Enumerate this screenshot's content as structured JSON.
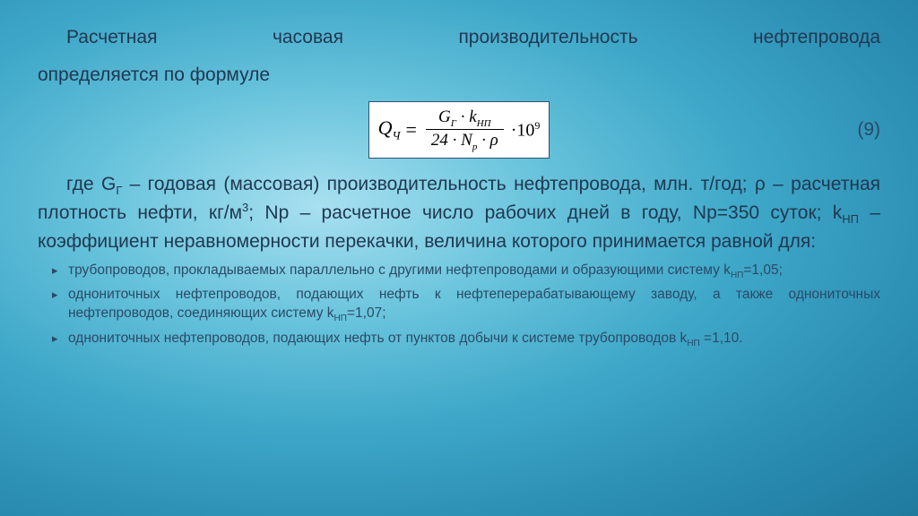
{
  "intro_line1": "Расчетная часовая производительность нефтепровода",
  "intro_line2": "определяется по формуле",
  "formula": {
    "lhs_sym": "Q",
    "lhs_sub": "Ч",
    "num": "G<sub>Г</sub> · k<sub>НП</sub>",
    "den": "24 · N<sub>p</sub> · ρ",
    "tail": "·10<sup>9</sup>",
    "eqnum": "(9)"
  },
  "where_html": "где G<sub>Г</sub> – годовая (массовая) производительность нефтепровода, млн. т/год; ρ – расчетная плотность нефти, кг/м<sup style='font-size:13px'>3</sup>; Np – расчетное число рабочих дней в году, Np=350 суток; k<sub>НП</sub> – коэффициент неравномерности перекачки, величина которого принимается равной для:",
  "bullets": [
    "трубопроводов, прокладываемых параллельно с другими нефтепроводами и образующими систему k<sub>НП</sub>=1,05;",
    "однониточных нефтепроводов, подающих нефть к нефтеперерабатывающему заводу, а также однониточных нефтепроводов, соединяющих систему k<sub>НП</sub>=1,07;",
    "однониточных нефтепроводов, подающих нефть от пунктов добычи к системе трубопроводов k<sub>НП</sub> =1,10."
  ],
  "colors": {
    "text": "#203850",
    "formula_border": "#2b5070",
    "formula_bg": "#ffffff",
    "bg_center": "#a8e0f0",
    "bg_outer": "#1f7a9e"
  }
}
